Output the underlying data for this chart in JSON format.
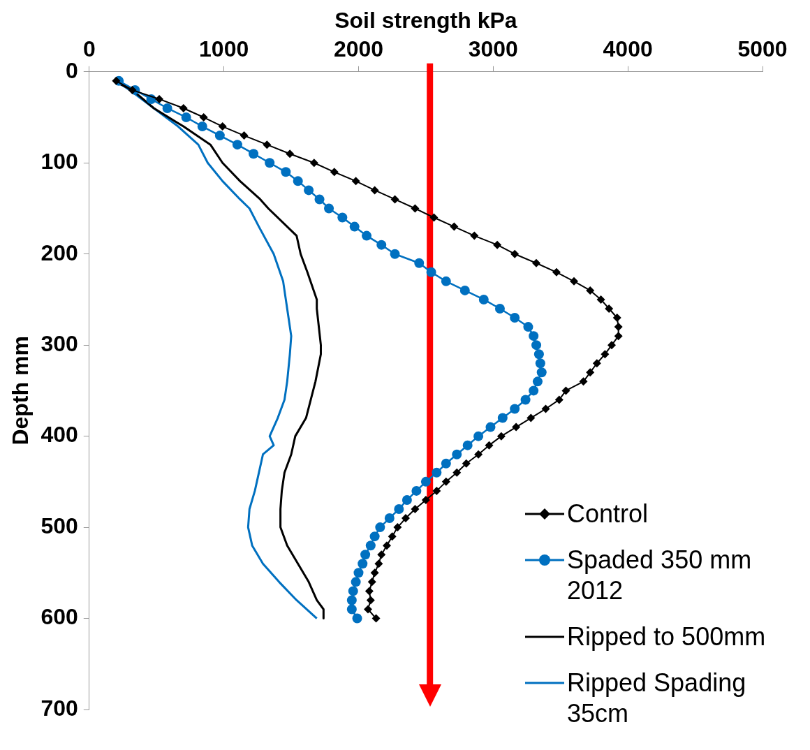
{
  "chart_data": {
    "type": "line",
    "xlabel": "Soil strength kPa",
    "ylabel": "Depth mm",
    "xlim": [
      0,
      5000
    ],
    "xticks": [
      0,
      1000,
      2000,
      3000,
      4000,
      5000
    ],
    "ylim": [
      700,
      0
    ],
    "yticks": [
      0,
      100,
      200,
      300,
      400,
      500,
      600,
      700
    ],
    "grid": false,
    "legend": "right",
    "line_style": "solid",
    "series": [
      {
        "name": "Control",
        "color": "#000000",
        "marker": "diamond",
        "x": [
          200,
          320,
          520,
          700,
          850,
          990,
          1150,
          1320,
          1490,
          1670,
          1820,
          1980,
          2120,
          2270,
          2420,
          2560,
          2710,
          2860,
          3030,
          3160,
          3320,
          3470,
          3600,
          3720,
          3800,
          3860,
          3920,
          3930,
          3930,
          3880,
          3830,
          3770,
          3720,
          3670,
          3540,
          3490,
          3390,
          3280,
          3170,
          3060,
          2970,
          2890,
          2800,
          2730,
          2650,
          2580,
          2500,
          2420,
          2350,
          2290,
          2250,
          2210,
          2170,
          2150,
          2120,
          2100,
          2080,
          2090,
          2070,
          2130
        ],
        "values": [
          10,
          20,
          30,
          40,
          50,
          60,
          70,
          80,
          90,
          100,
          110,
          120,
          130,
          140,
          150,
          160,
          170,
          180,
          190,
          200,
          210,
          220,
          230,
          240,
          250,
          260,
          270,
          280,
          290,
          300,
          310,
          320,
          330,
          340,
          350,
          360,
          370,
          380,
          390,
          400,
          410,
          420,
          430,
          440,
          450,
          460,
          470,
          480,
          490,
          500,
          510,
          520,
          530,
          540,
          550,
          560,
          570,
          580,
          590,
          600
        ]
      },
      {
        "name": "Spaded 350 mm 2012",
        "color": "#0070c0",
        "marker": "circle",
        "x": [
          220,
          340,
          460,
          580,
          720,
          840,
          970,
          1100,
          1220,
          1340,
          1460,
          1550,
          1630,
          1710,
          1780,
          1880,
          1970,
          2060,
          2170,
          2270,
          2450,
          2540,
          2650,
          2790,
          2930,
          3050,
          3160,
          3260,
          3300,
          3320,
          3340,
          3350,
          3360,
          3330,
          3300,
          3240,
          3160,
          3070,
          2980,
          2890,
          2810,
          2730,
          2650,
          2580,
          2500,
          2430,
          2360,
          2300,
          2230,
          2160,
          2120,
          2090,
          2050,
          2030,
          2000,
          1980,
          1960,
          1950,
          1950,
          1990
        ],
        "values": [
          10,
          20,
          30,
          40,
          50,
          60,
          70,
          80,
          90,
          100,
          110,
          120,
          130,
          140,
          150,
          160,
          170,
          180,
          190,
          200,
          210,
          220,
          230,
          240,
          250,
          260,
          270,
          280,
          290,
          300,
          310,
          320,
          330,
          340,
          350,
          360,
          370,
          380,
          390,
          400,
          410,
          420,
          430,
          440,
          450,
          460,
          470,
          480,
          490,
          500,
          510,
          520,
          530,
          540,
          550,
          560,
          570,
          580,
          590,
          600
        ]
      },
      {
        "name": "Ripped to 500mm",
        "color": "#000000",
        "marker": "none",
        "x": [
          180,
          320,
          480,
          700,
          900,
          990,
          1120,
          1270,
          1330,
          1540,
          1570,
          1620,
          1690,
          1690,
          1720,
          1720,
          1680,
          1610,
          1530,
          1500,
          1450,
          1430,
          1420,
          1420,
          1470,
          1550,
          1630,
          1690,
          1740,
          1740
        ],
        "values": [
          10,
          20,
          40,
          60,
          80,
          100,
          120,
          140,
          150,
          180,
          200,
          220,
          250,
          260,
          300,
          310,
          340,
          380,
          400,
          420,
          440,
          460,
          480,
          500,
          520,
          540,
          560,
          580,
          590,
          600
        ]
      },
      {
        "name": "Ripped Spading 35cm",
        "color": "#0070c0",
        "marker": "none",
        "x": [
          200,
          300,
          480,
          660,
          810,
          880,
          990,
          1120,
          1190,
          1260,
          1370,
          1440,
          1460,
          1480,
          1500,
          1490,
          1470,
          1450,
          1400,
          1340,
          1370,
          1290,
          1260,
          1230,
          1190,
          1180,
          1210,
          1290,
          1410,
          1540,
          1690
        ],
        "values": [
          10,
          20,
          40,
          60,
          80,
          100,
          120,
          140,
          150,
          170,
          200,
          230,
          250,
          270,
          290,
          310,
          340,
          360,
          380,
          400,
          410,
          420,
          440,
          460,
          480,
          500,
          520,
          540,
          560,
          580,
          600
        ]
      }
    ],
    "ref_lines": [
      {
        "axis": "x",
        "value": 2530,
        "color": "#ff0000"
      }
    ]
  }
}
